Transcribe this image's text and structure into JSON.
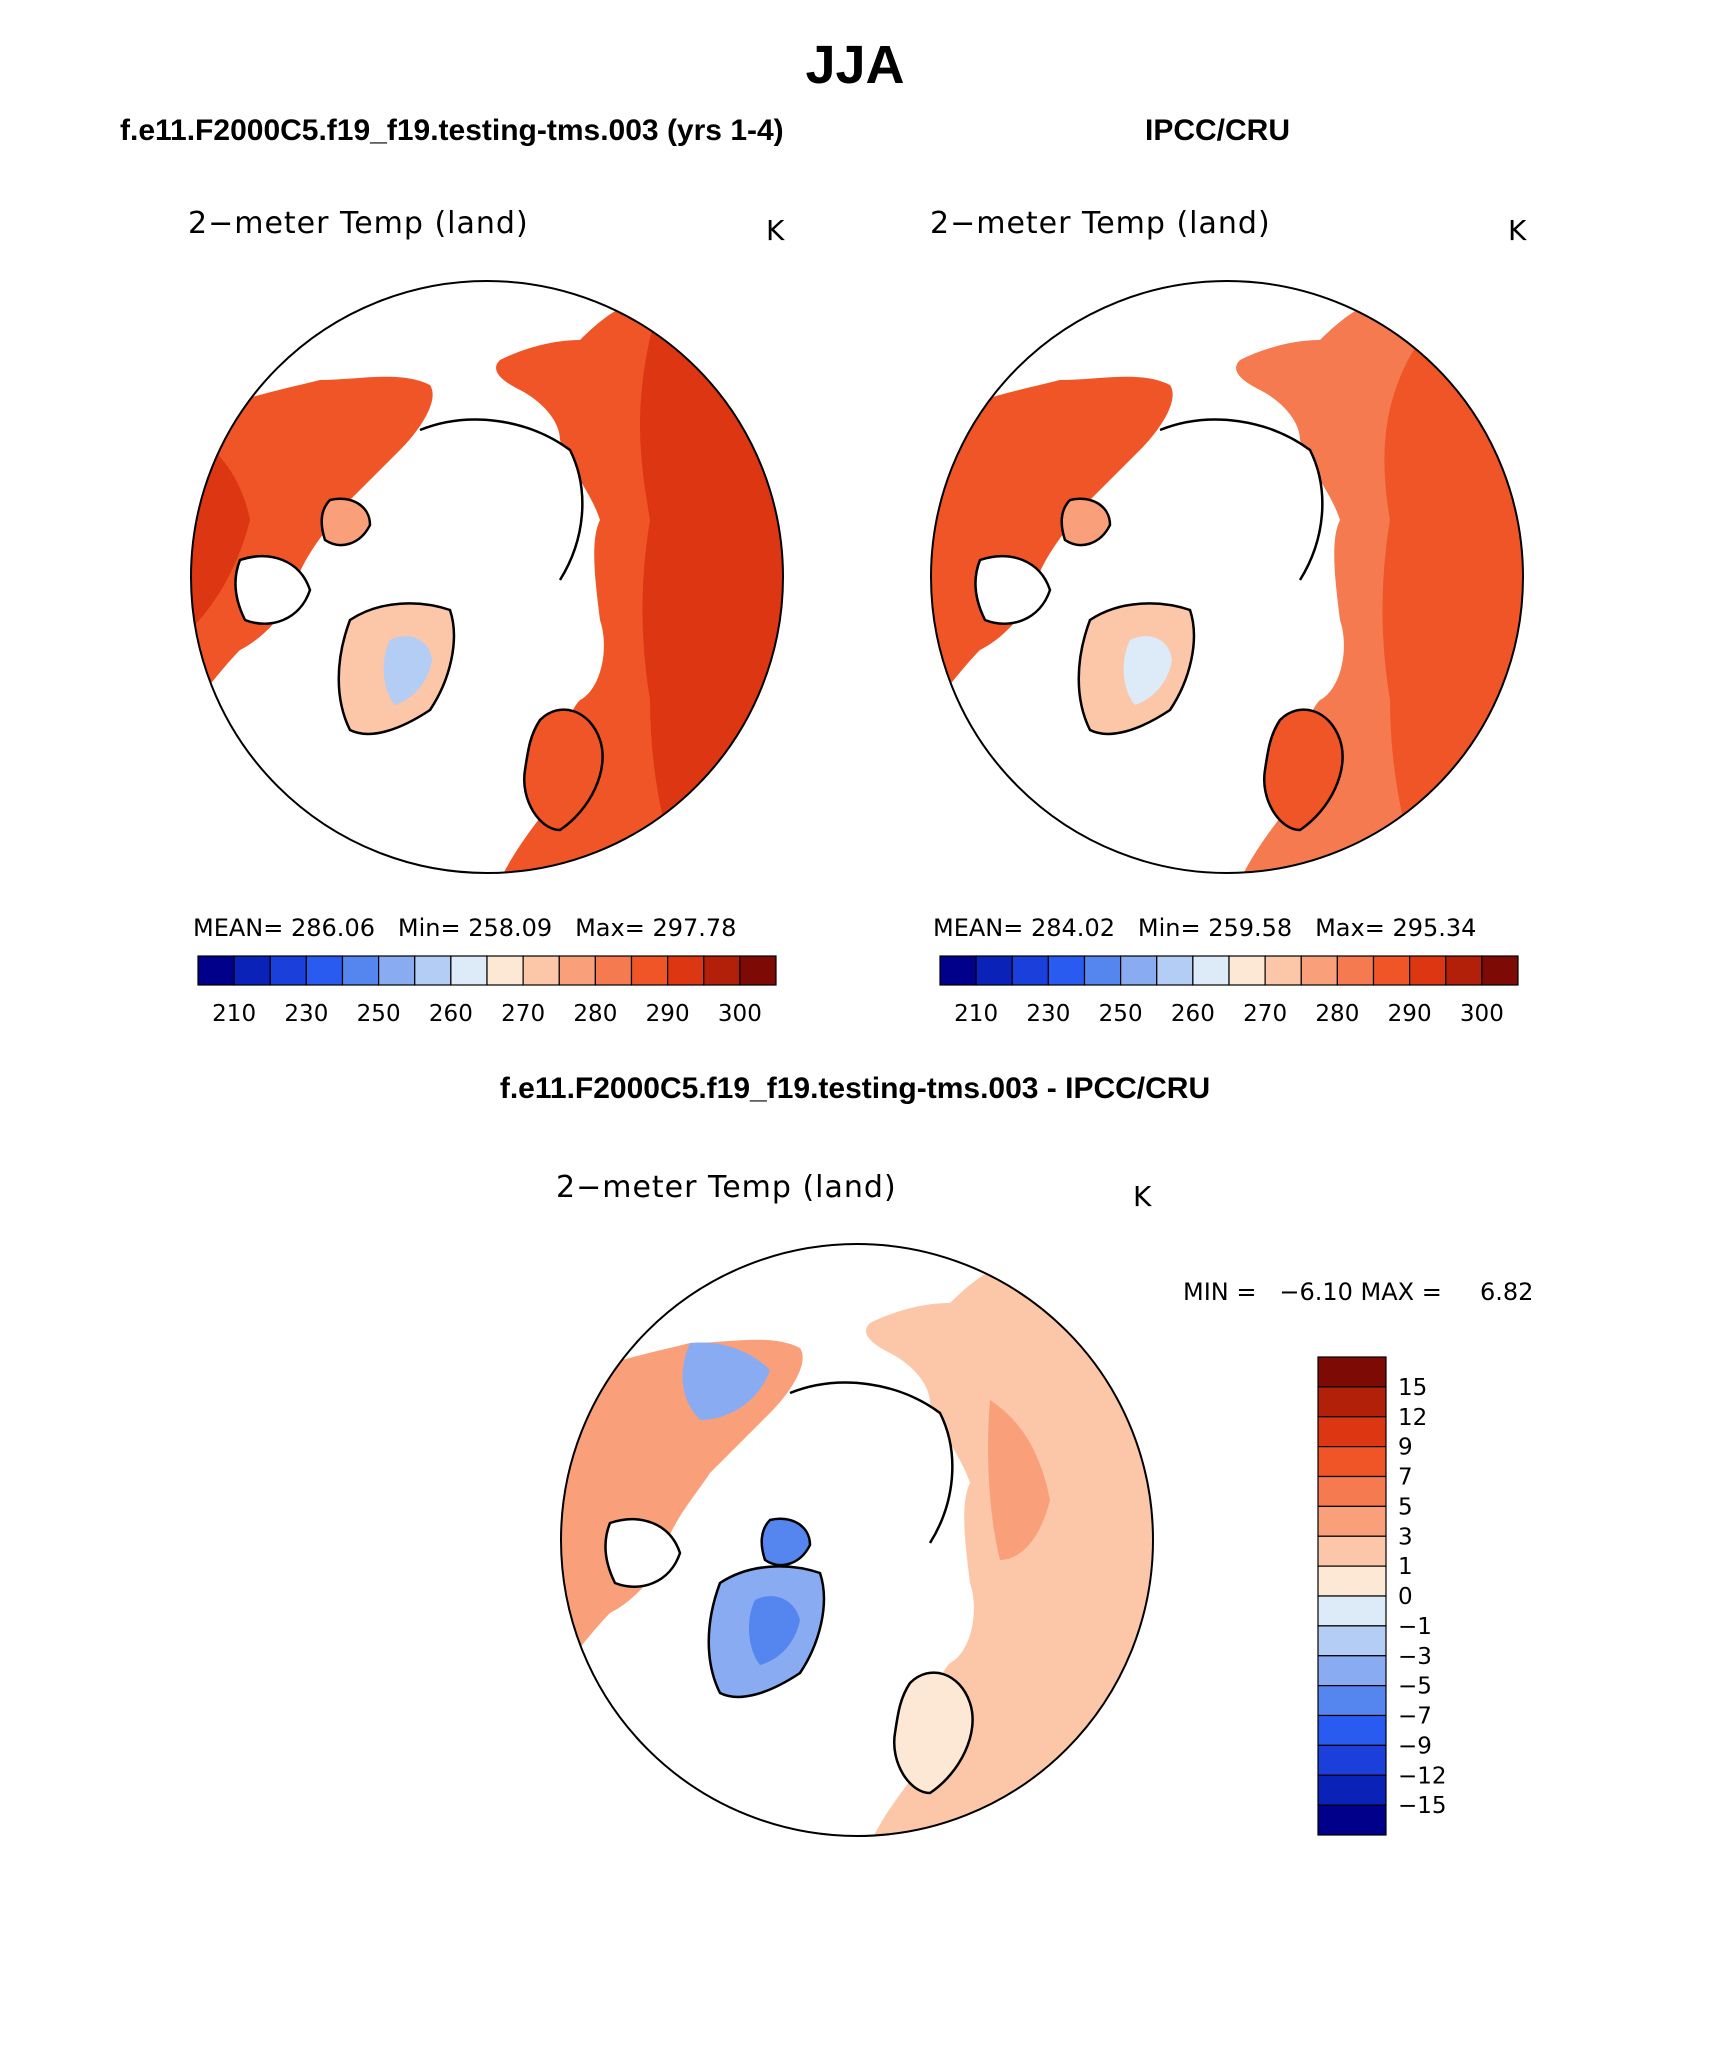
{
  "title": "JJA",
  "panels": [
    {
      "id": "model",
      "header": "f.e11.F2000C5.f19_f19.testing-tms.003 (yrs 1-4)",
      "variable": "2−meter Temp (land)",
      "units": "K",
      "stats": {
        "mean": "286.06",
        "min": "258.09",
        "max": "297.78"
      },
      "stats_labels": {
        "mean": "MEAN=",
        "min": "Min=",
        "max": "Max="
      }
    },
    {
      "id": "obs",
      "header": "IPCC/CRU",
      "variable": "2−meter Temp (land)",
      "units": "K",
      "stats": {
        "mean": "284.02",
        "min": "259.58",
        "max": "295.34"
      },
      "stats_labels": {
        "mean": "MEAN=",
        "min": "Min=",
        "max": "Max="
      }
    }
  ],
  "difference": {
    "header": "f.e11.F2000C5.f19_f19.testing-tms.003 - IPCC/CRU",
    "variable": "2−meter Temp (land)",
    "units": "K",
    "minmax_text": "MIN =   −6.10 MAX =     6.82"
  },
  "colorbar_abs": {
    "colors": [
      "#00008a",
      "#0a22b8",
      "#1a3fdb",
      "#2a5bf0",
      "#5586f0",
      "#88abf2",
      "#b4cdf5",
      "#dcebf7",
      "#fde8d6",
      "#fcc6a8",
      "#f9a07a",
      "#f57a50",
      "#ef5527",
      "#dc3712",
      "#b3200a",
      "#7d0a05"
    ],
    "tick_labels": [
      "210",
      "230",
      "250",
      "260",
      "270",
      "280",
      "290",
      "300"
    ]
  },
  "colorbar_diff": {
    "colors": [
      "#7d0a05",
      "#b3200a",
      "#dc3712",
      "#ef5527",
      "#f57a50",
      "#f9a07a",
      "#fcc6a8",
      "#fde8d6",
      "#dcebf7",
      "#b4cdf5",
      "#88abf2",
      "#5586f0",
      "#2a5bf0",
      "#1a3fdb",
      "#0a22b8",
      "#00008a"
    ],
    "tick_labels": [
      "15",
      "12",
      "9",
      "7",
      "5",
      "3",
      "1",
      "0",
      "−1",
      "−3",
      "−5",
      "−7",
      "−9",
      "−12",
      "−15"
    ]
  },
  "map_colors": {
    "hot": "#dc3712",
    "warm": "#ef5527",
    "mild": "#f57a50",
    "cool": "#f9a07a",
    "pale": "#fcc6a8",
    "cream": "#fde8d6",
    "icyblue": "#b4cdf5",
    "blue": "#88abf2",
    "deepblue": "#5586f0"
  }
}
